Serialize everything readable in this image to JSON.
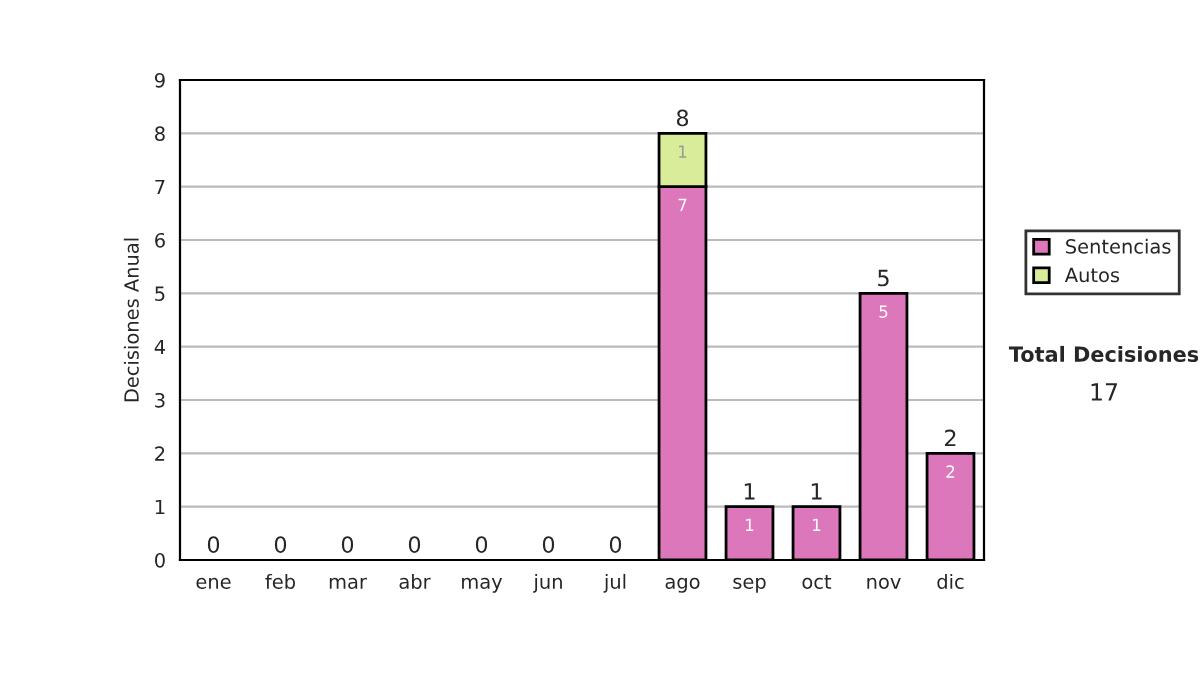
{
  "chart_data": {
    "type": "bar",
    "stacked": true,
    "ylabel": "Decisiones Anual",
    "categories": [
      "ene",
      "feb",
      "mar",
      "abr",
      "may",
      "jun",
      "jul",
      "ago",
      "sep",
      "oct",
      "nov",
      "dic"
    ],
    "series": [
      {
        "name": "Sentencias",
        "color": "#dd77bb",
        "values": [
          0,
          0,
          0,
          0,
          0,
          0,
          0,
          7,
          1,
          1,
          5,
          2
        ],
        "value_labels": [
          null,
          null,
          null,
          null,
          null,
          null,
          null,
          "7",
          "1",
          "1",
          "5",
          "2"
        ]
      },
      {
        "name": "Autos",
        "color": "#d8ec99",
        "values": [
          0,
          0,
          0,
          0,
          0,
          0,
          0,
          1,
          0,
          0,
          0,
          0
        ],
        "value_labels": [
          null,
          null,
          null,
          null,
          null,
          null,
          null,
          "1",
          null,
          null,
          null,
          null
        ]
      }
    ],
    "totals": [
      "0",
      "0",
      "0",
      "0",
      "0",
      "0",
      "0",
      "8",
      "1",
      "1",
      "5",
      "2"
    ],
    "ylim": [
      0,
      9
    ],
    "yticks": [
      0,
      1,
      2,
      3,
      4,
      5,
      6,
      7,
      8,
      9
    ],
    "grid": "y",
    "legend": "right",
    "annotations": [
      "Total Decisiones",
      "17"
    ]
  }
}
